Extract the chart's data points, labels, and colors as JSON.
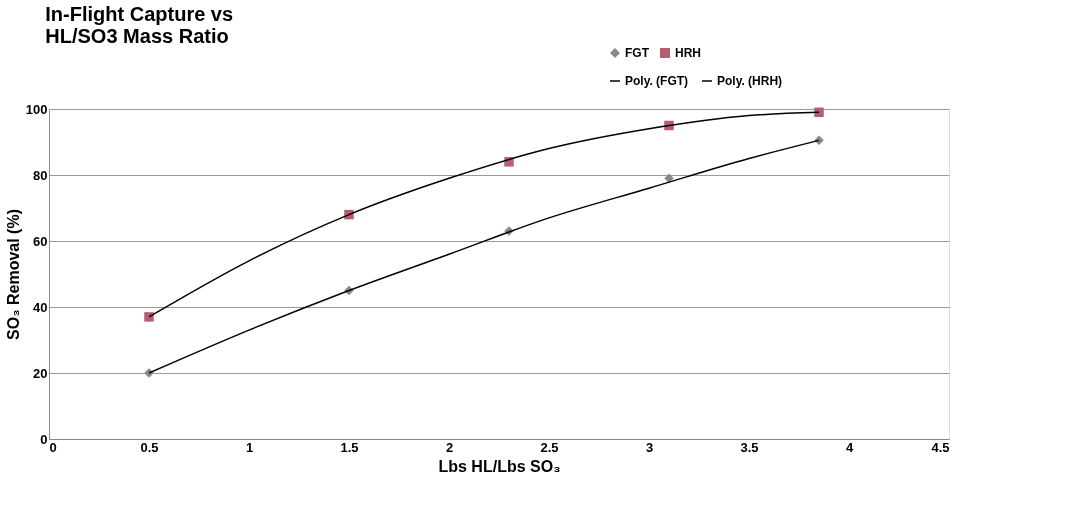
{
  "chart_data": {
    "type": "scatter",
    "title": [
      "In-Flight Capture vs",
      "HL/SO3 Mass Ratio"
    ],
    "xlabel": "Lbs HL/Lbs SO₃",
    "ylabel": "SO₃ Removal (%)",
    "xlim": [
      0,
      4.5
    ],
    "xticks": [
      0,
      0.5,
      1,
      1.5,
      2,
      2.5,
      3,
      3.5,
      4,
      4.5
    ],
    "ylim": [
      0,
      100
    ],
    "yticks": [
      0,
      20,
      40,
      60,
      80,
      100
    ],
    "grid": "y",
    "legend": "top right",
    "series": [
      {
        "name": "FGT",
        "marker": "diamond",
        "color": "#7f8c8a",
        "x": [
          0.5,
          1.5,
          2.3,
          3.1,
          3.85
        ],
        "values": [
          20,
          45,
          63,
          79,
          90.5
        ]
      },
      {
        "name": "HRH",
        "marker": "square",
        "color": "#b85c72",
        "x": [
          0.5,
          1.5,
          2.3,
          3.1,
          3.85
        ],
        "values": [
          37,
          68,
          84,
          95,
          99
        ]
      },
      {
        "name": "Poly. (FGT)",
        "type": "line",
        "line_style": "solid",
        "color": "#000000",
        "x": [
          0.5,
          1,
          1.5,
          2,
          2.5,
          3,
          3.5,
          3.85
        ],
        "values": [
          20,
          33,
          45,
          56,
          67,
          76,
          85,
          90.5
        ]
      },
      {
        "name": "Poly. (HRH)",
        "type": "line",
        "line_style": "solid",
        "color": "#000000",
        "x": [
          0.5,
          1,
          1.5,
          2,
          2.5,
          3,
          3.5,
          3.85
        ],
        "values": [
          37,
          54,
          68,
          79,
          88,
          94,
          98,
          99
        ]
      }
    ]
  }
}
